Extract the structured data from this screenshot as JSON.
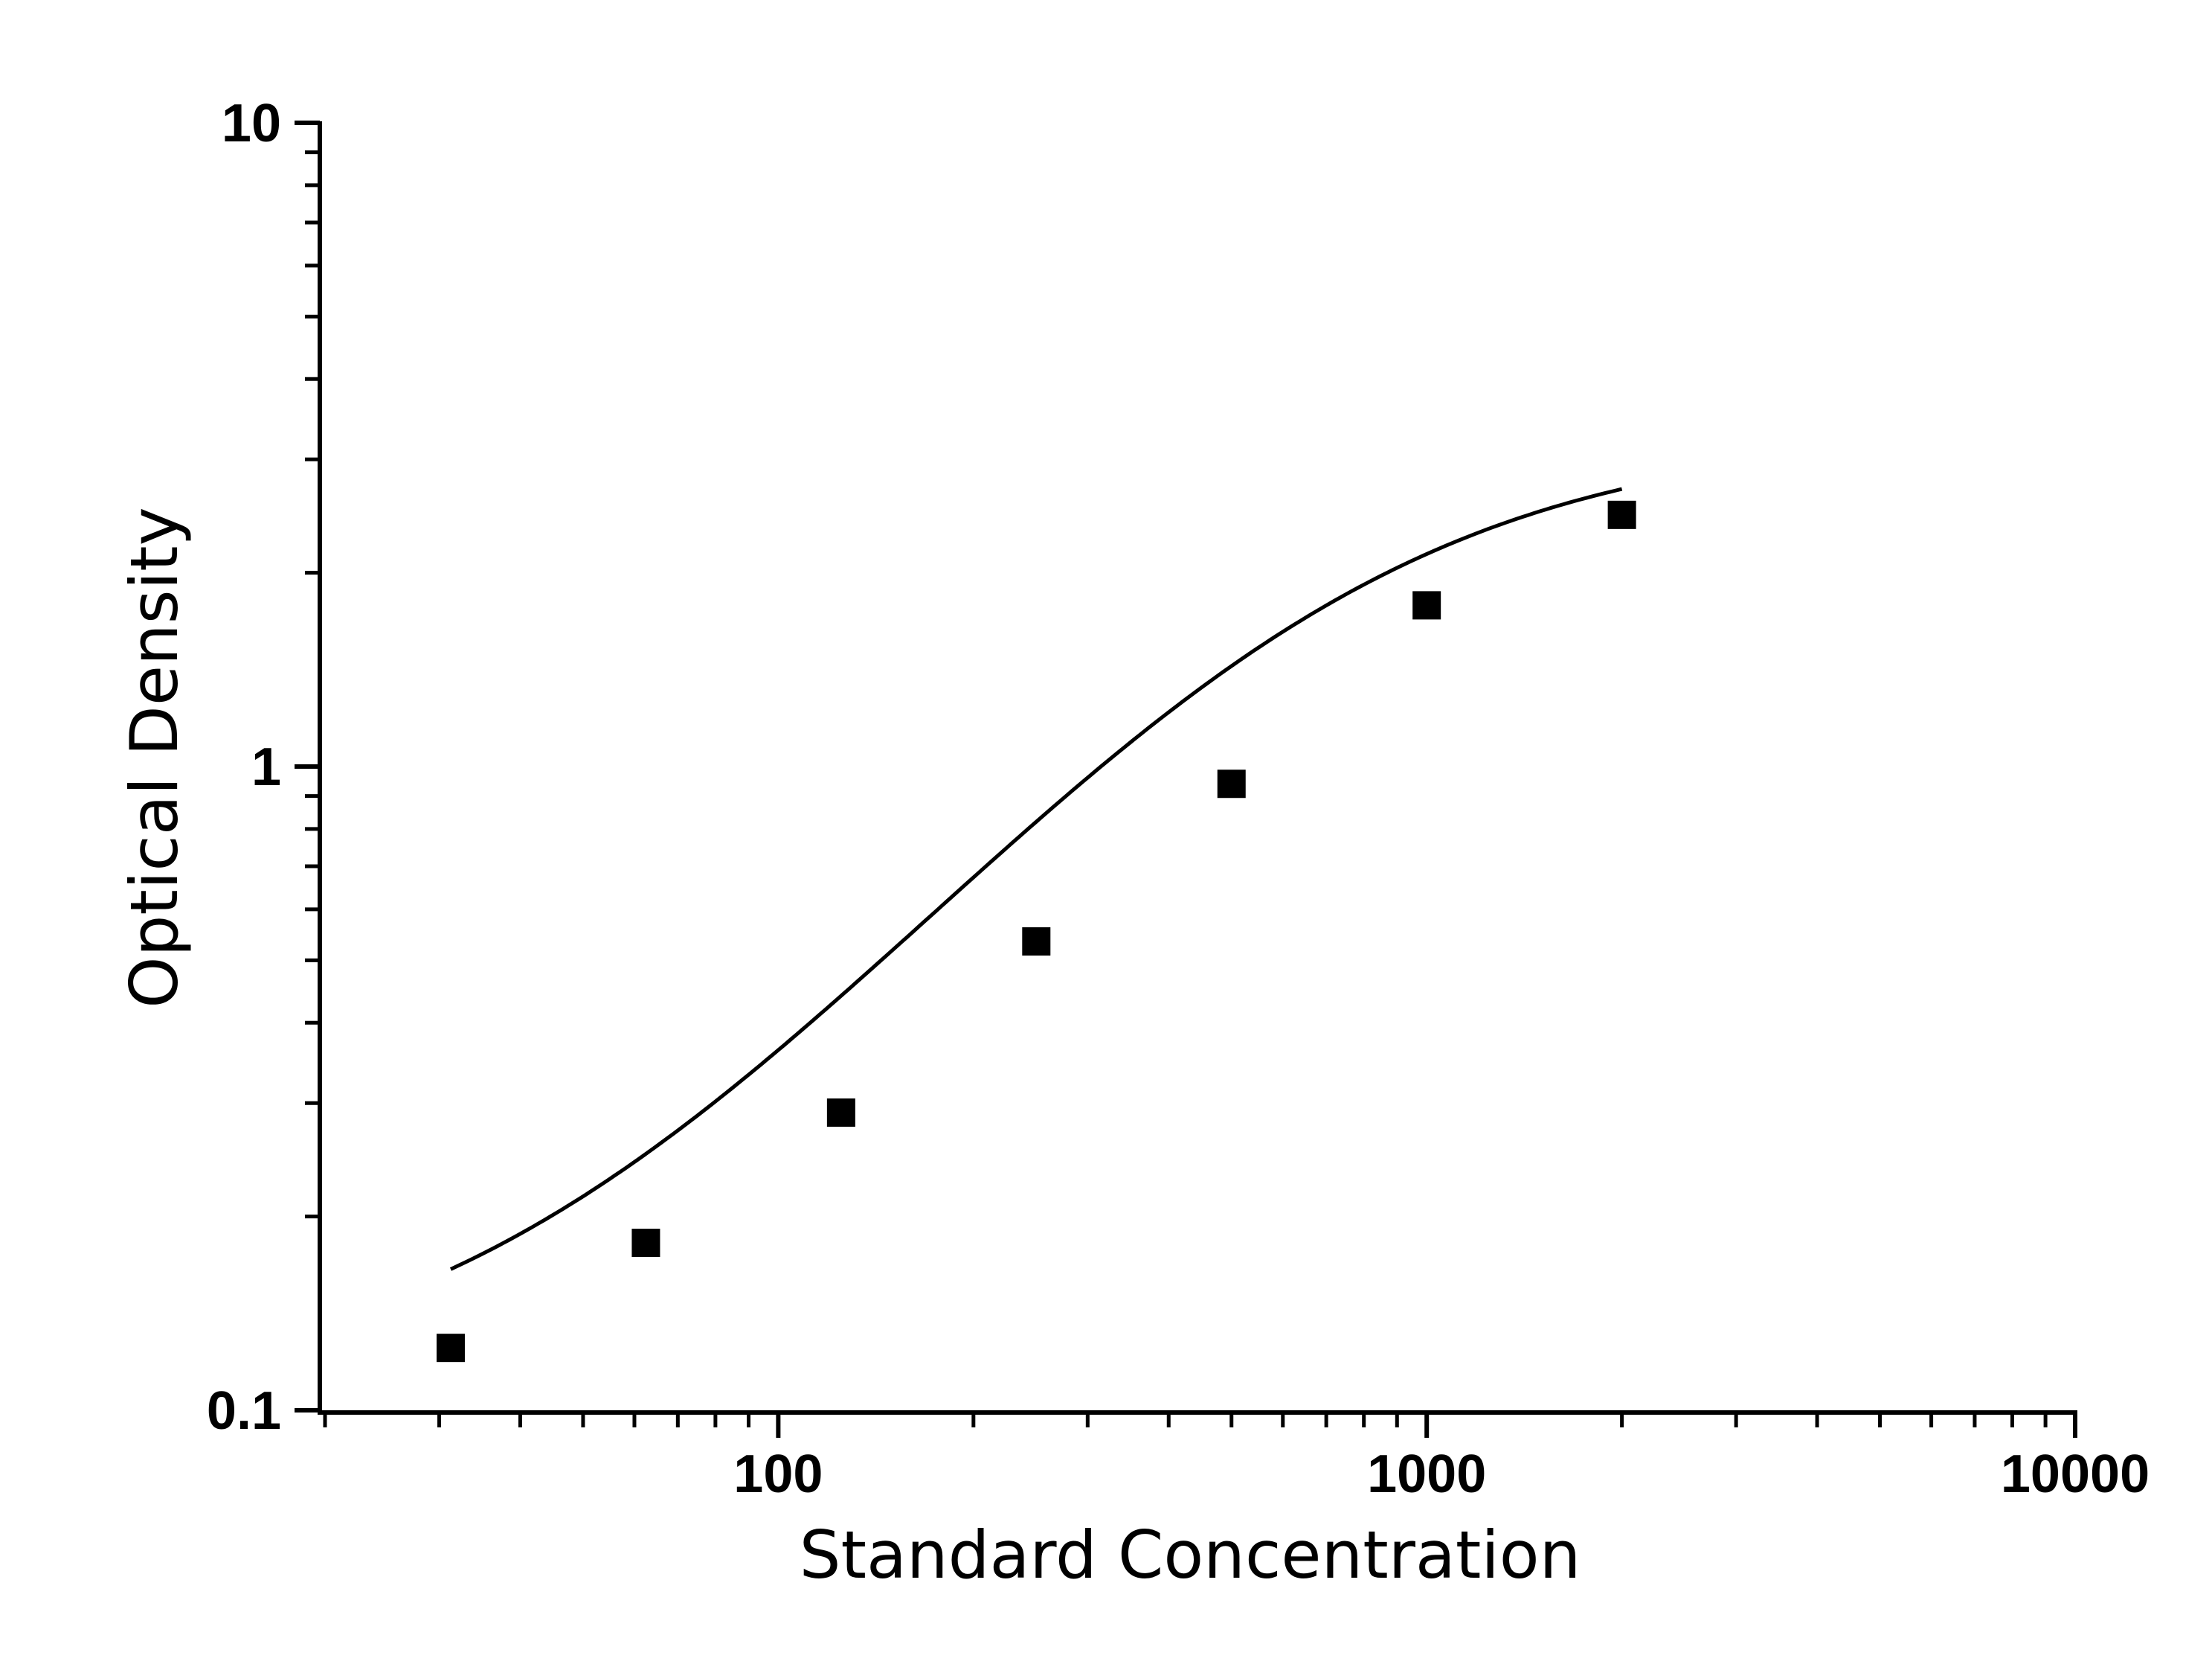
{
  "chart_data": {
    "type": "scatter",
    "xlabel": "Standard Concentration",
    "ylabel": "Optical Density",
    "xscale": "log",
    "yscale": "log",
    "xlim": [
      20,
      10000
    ],
    "ylim": [
      0.1,
      10
    ],
    "x_ticks": [
      {
        "value": 100,
        "label": "100"
      },
      {
        "value": 1000,
        "label": "1000"
      },
      {
        "value": 10000,
        "label": "10000"
      }
    ],
    "y_ticks": [
      {
        "value": 0.1,
        "label": "0.1"
      },
      {
        "value": 1,
        "label": "1"
      },
      {
        "value": 10,
        "label": "10"
      }
    ],
    "grid": false,
    "legend": "none",
    "marker": "square",
    "color": "#000000",
    "points": [
      {
        "x": 31.25,
        "y": 0.125
      },
      {
        "x": 62.5,
        "y": 0.182
      },
      {
        "x": 125,
        "y": 0.29
      },
      {
        "x": 250,
        "y": 0.535
      },
      {
        "x": 500,
        "y": 0.94
      },
      {
        "x": 1000,
        "y": 1.78
      },
      {
        "x": 2000,
        "y": 2.46
      }
    ],
    "fit_curve": {
      "type": "four-parameter logistic",
      "x_from": 31.25,
      "x_to": 2000,
      "A": 0.105,
      "D": 3.3,
      "C": 650,
      "B": 1.3
    }
  }
}
